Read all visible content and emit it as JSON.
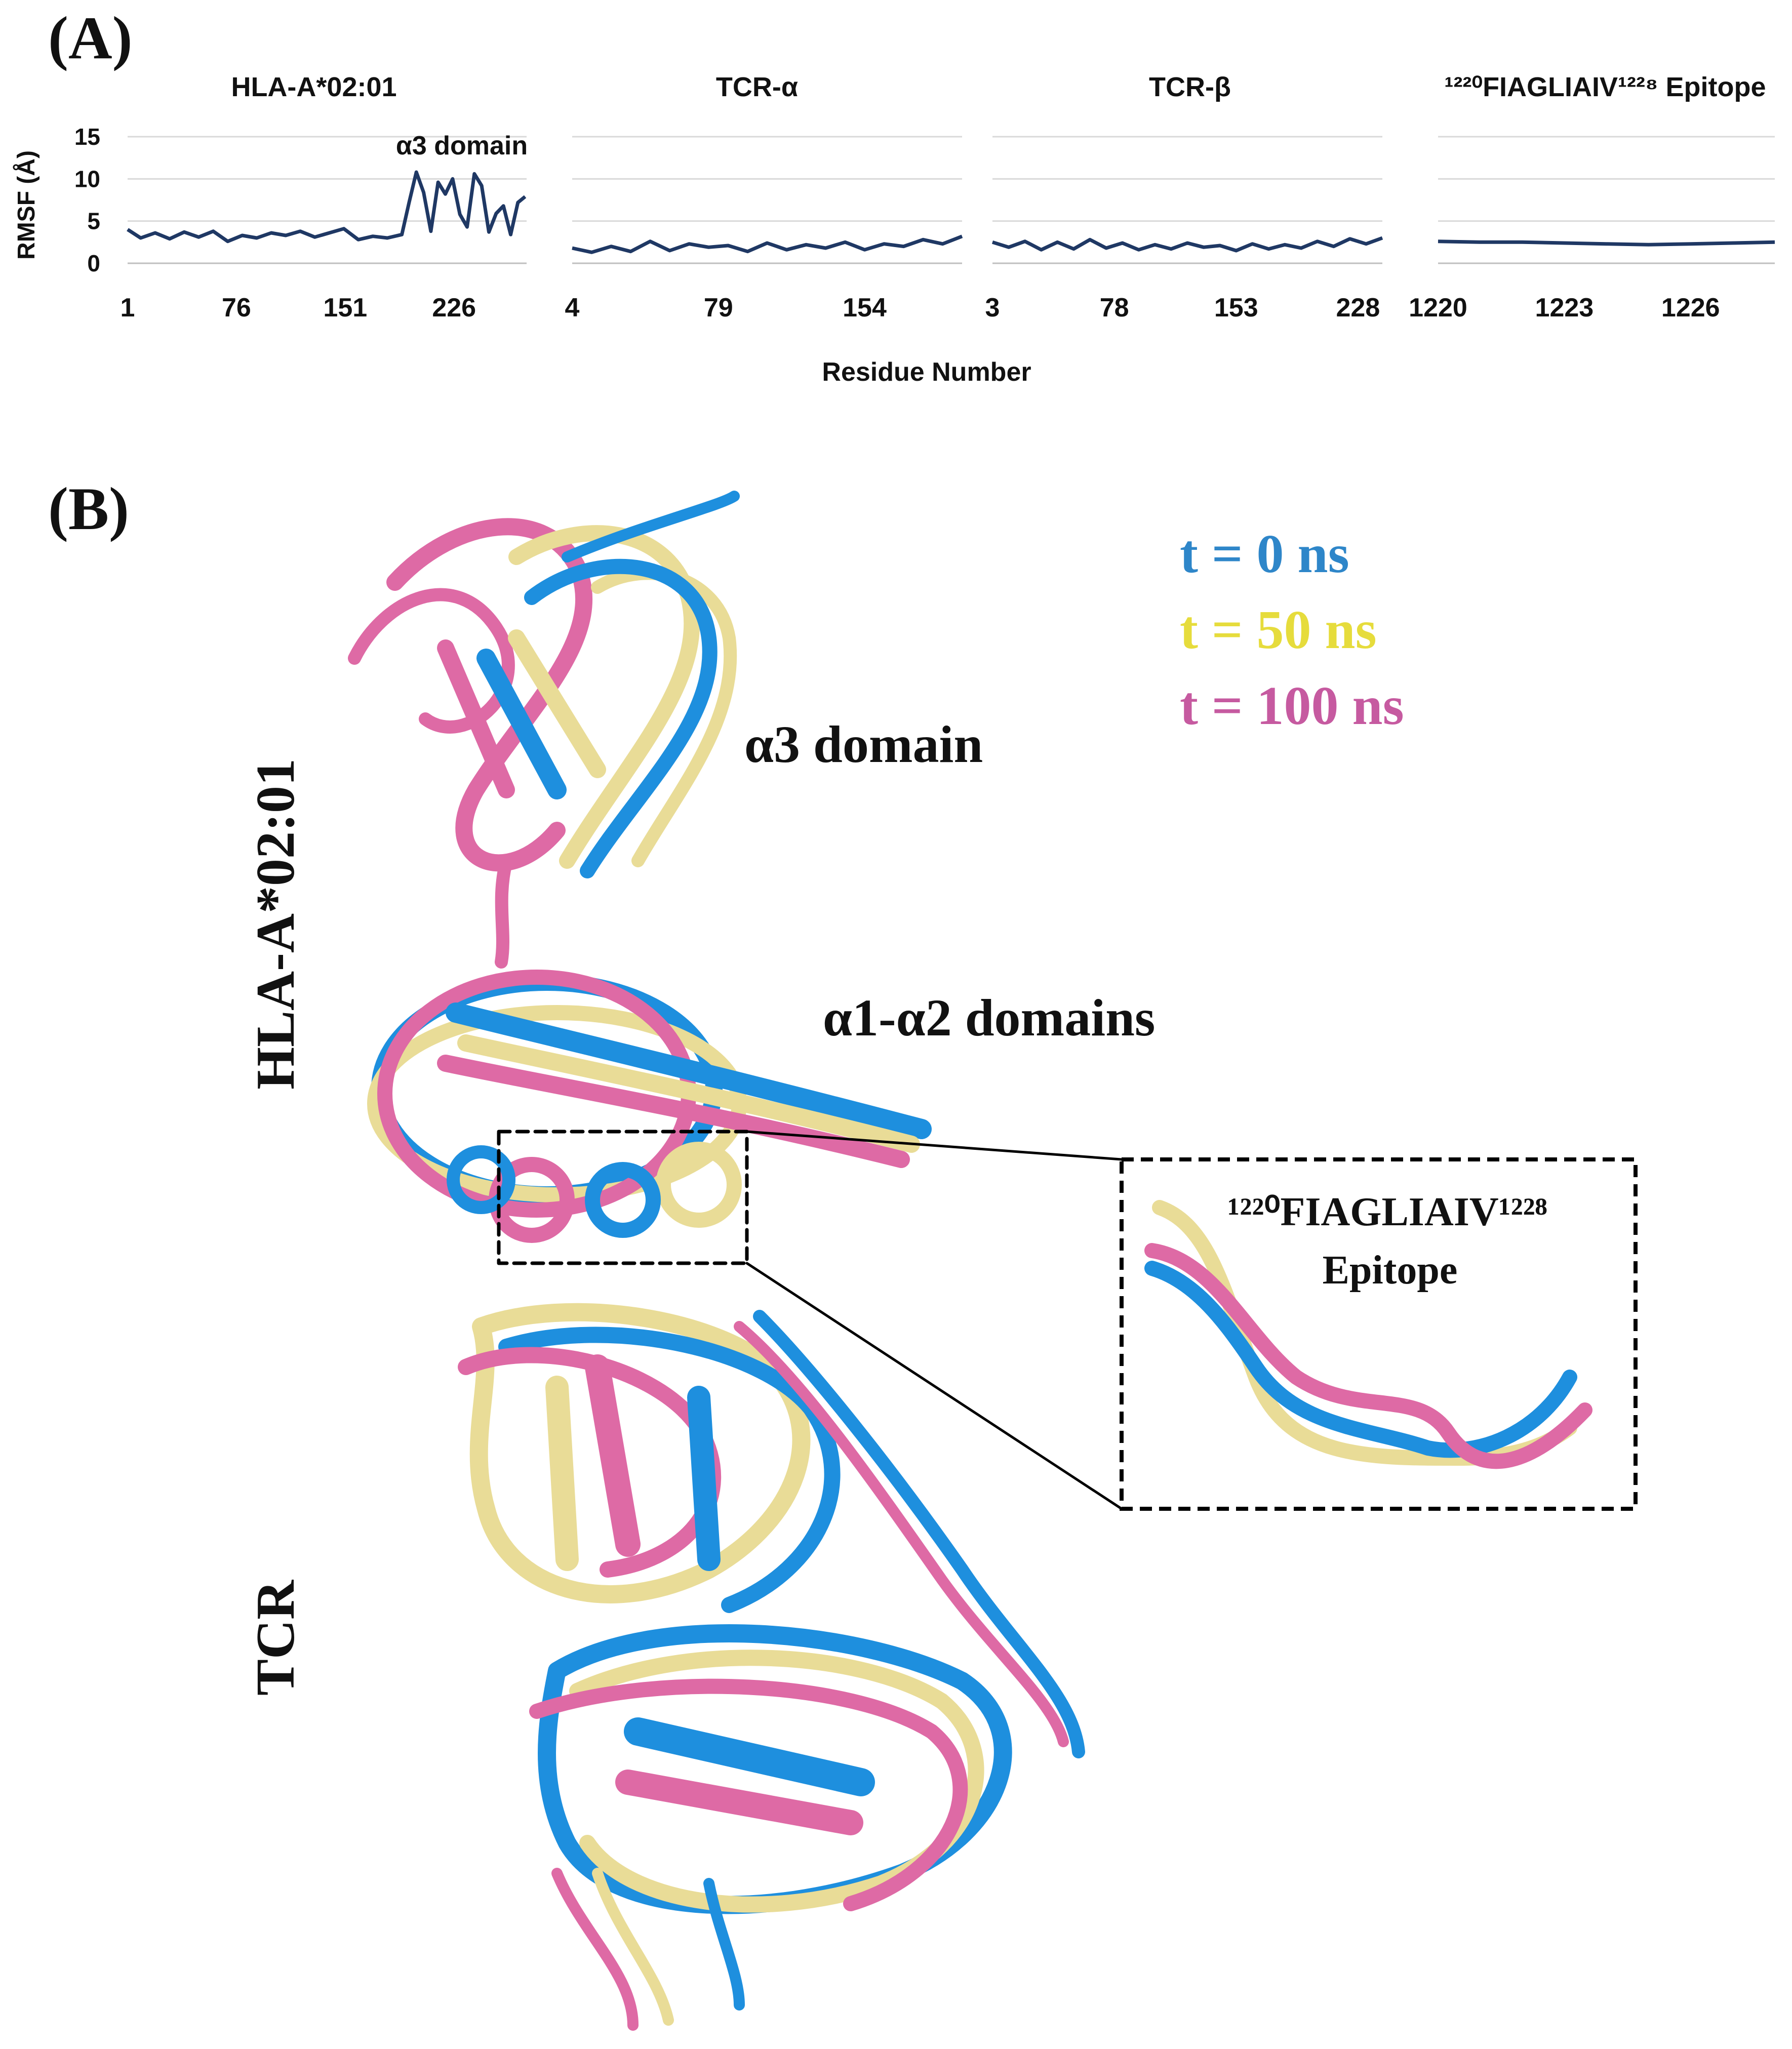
{
  "panel_labels": {
    "a": "(A)",
    "b": "(B)"
  },
  "chart_data": {
    "type": "line",
    "ylabel": "RMSF (Å)",
    "xlabel": "Residue Number",
    "ylim": [
      0,
      15
    ],
    "yticks": [
      "0",
      "5",
      "10",
      "15"
    ],
    "line_color": "#1f3864",
    "annotation": "α3 domain",
    "panels": [
      {
        "title": "HLA-A*02:01",
        "xticks": [
          "1",
          "76",
          "151",
          "226"
        ],
        "xrange": [
          1,
          276
        ],
        "x": [
          1,
          10,
          20,
          30,
          40,
          50,
          60,
          70,
          80,
          90,
          100,
          110,
          120,
          130,
          140,
          150,
          160,
          170,
          180,
          190,
          195,
          200,
          205,
          210,
          215,
          220,
          225,
          230,
          235,
          240,
          245,
          250,
          255,
          260,
          265,
          270,
          275
        ],
        "values": [
          4.0,
          3.0,
          3.6,
          2.9,
          3.7,
          3.1,
          3.8,
          2.6,
          3.3,
          3.0,
          3.6,
          3.3,
          3.8,
          3.1,
          3.6,
          4.1,
          2.8,
          3.2,
          3.0,
          3.4,
          7.2,
          10.8,
          8.4,
          3.8,
          9.6,
          8.2,
          10.0,
          5.8,
          4.3,
          10.6,
          9.2,
          3.7,
          5.9,
          6.8,
          3.4,
          7.2,
          7.9
        ]
      },
      {
        "title": "TCR-α",
        "xticks": [
          "4",
          "79",
          "154"
        ],
        "xrange": [
          4,
          204
        ],
        "x": [
          4,
          14,
          24,
          34,
          44,
          54,
          64,
          74,
          84,
          94,
          104,
          114,
          124,
          134,
          144,
          154,
          164,
          174,
          184,
          194,
          204
        ],
        "values": [
          1.8,
          1.3,
          2.0,
          1.4,
          2.6,
          1.5,
          2.3,
          1.9,
          2.1,
          1.4,
          2.4,
          1.6,
          2.2,
          1.8,
          2.5,
          1.6,
          2.3,
          2.0,
          2.8,
          2.3,
          3.2
        ]
      },
      {
        "title": "TCR-β",
        "xticks": [
          "3",
          "78",
          "153",
          "228"
        ],
        "xrange": [
          3,
          243
        ],
        "x": [
          3,
          13,
          23,
          33,
          43,
          53,
          63,
          73,
          83,
          93,
          103,
          113,
          123,
          133,
          143,
          153,
          163,
          173,
          183,
          193,
          203,
          213,
          223,
          233,
          243
        ],
        "values": [
          2.5,
          1.9,
          2.6,
          1.6,
          2.5,
          1.7,
          2.8,
          1.8,
          2.4,
          1.6,
          2.2,
          1.7,
          2.4,
          1.9,
          2.1,
          1.5,
          2.3,
          1.7,
          2.2,
          1.8,
          2.6,
          2.0,
          2.9,
          2.3,
          3.0
        ]
      },
      {
        "title": "¹²²⁰FIAGLIAIV¹²²⁸ Epitope",
        "xticks": [
          "1220",
          "1223",
          "1226"
        ],
        "xrange": [
          1220,
          1228
        ],
        "x": [
          1220,
          1221,
          1222,
          1223,
          1224,
          1225,
          1226,
          1227,
          1228
        ],
        "values": [
          2.6,
          2.5,
          2.5,
          2.4,
          2.3,
          2.2,
          2.3,
          2.4,
          2.5
        ]
      }
    ]
  },
  "panel_b": {
    "legend": [
      {
        "label": "t = 0 ns",
        "color": "#2e86c9"
      },
      {
        "label": "t = 50 ns",
        "color": "#e6dc3c"
      },
      {
        "label": "t = 100 ns",
        "color": "#c65aa0"
      }
    ],
    "labels": {
      "a3": "α3 domain",
      "a1a2": "α1-α2 domains",
      "hla": "HLA-A*02:01",
      "tcr": "TCR"
    },
    "inset": {
      "line1": "¹²²⁰FIAGLIAIV¹²²⁸",
      "line2": "Epitope"
    },
    "colors": {
      "blue": "#1e8fde",
      "yellow": "#e9dc97",
      "pink": "#de6aa5"
    }
  }
}
